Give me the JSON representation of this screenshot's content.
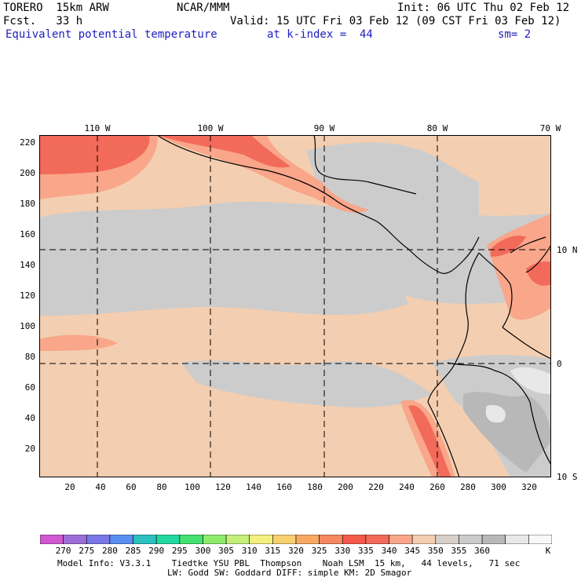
{
  "header": {
    "line1_left": "TORERO  15km ARW",
    "line1_mid": "NCAR/MMM",
    "line1_right": "Init: 06 UTC Thu 02 Feb 12",
    "line2_left": "Fcst.   33 h",
    "line2_right": "Valid: 15 UTC Fri 03 Feb 12 (09 CST Fri 03 Feb 12)",
    "line3_field": "Equivalent potential temperature",
    "line3_level": "at k-index =  44",
    "line3_smooth": "sm= 2"
  },
  "map": {
    "lon_labels": [
      "110 W",
      "100 W",
      "90 W",
      "80 W",
      "70 W"
    ],
    "lat_labels": [
      "10 N",
      "0",
      "10 S"
    ],
    "y_ticks": [
      "220",
      "200",
      "180",
      "160",
      "140",
      "120",
      "100",
      "80",
      "60",
      "40",
      "20"
    ],
    "x_ticks": [
      "20",
      "40",
      "60",
      "80",
      "100",
      "120",
      "140",
      "160",
      "180",
      "200",
      "220",
      "240",
      "260",
      "280",
      "300",
      "320"
    ],
    "colors": {
      "c340": "#f4ceb0",
      "c345": "#cccccc",
      "c335": "#f9a68a",
      "c330": "#f26a5a",
      "c325": "#f0524a",
      "c355": "#e8e8e8",
      "c360": "#f8f8f8",
      "c350": "#b8b8b8"
    }
  },
  "colorbar": {
    "colors": [
      "#d258d2",
      "#9c6ed8",
      "#7a78e6",
      "#5a8ef0",
      "#2cc0c0",
      "#22d8a0",
      "#44e070",
      "#8cec6a",
      "#c4f07a",
      "#f4f080",
      "#f8d070",
      "#f8a860",
      "#f48860",
      "#f45a4a",
      "#f26a5a",
      "#f9a68a",
      "#f4ceb0",
      "#d8d0c8",
      "#cccccc",
      "#b8b8b8",
      "#e8e8e8",
      "#f8f8f8"
    ],
    "labels": [
      "270",
      "275",
      "280",
      "285",
      "290",
      "295",
      "300",
      "305",
      "310",
      "315",
      "320",
      "325",
      "330",
      "335",
      "340",
      "345",
      "350",
      "355",
      "360"
    ],
    "unit": "K"
  },
  "footer": {
    "line1": "Model Info: V3.3.1    Tiedtke YSU PBL  Thompson    Noah LSM  15 km,   44 levels,   71 sec",
    "line2": "LW: Godd SW: Goddard DIFF: simple KM: 2D Smagor"
  }
}
